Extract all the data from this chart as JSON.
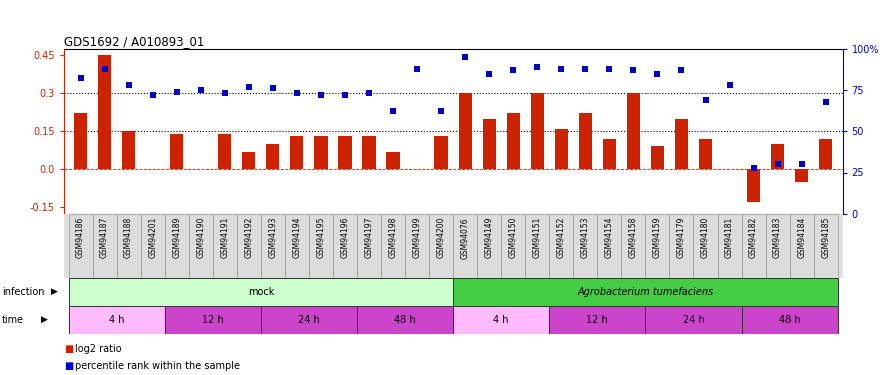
{
  "title": "GDS1692 / A010893_01",
  "gsm_labels": [
    "GSM94186",
    "GSM94187",
    "GSM94188",
    "GSM94201",
    "GSM94189",
    "GSM94190",
    "GSM94191",
    "GSM94192",
    "GSM94193",
    "GSM94194",
    "GSM94195",
    "GSM94196",
    "GSM94197",
    "GSM94198",
    "GSM94199",
    "GSM94200",
    "GSM94076",
    "GSM94149",
    "GSM94150",
    "GSM94151",
    "GSM94152",
    "GSM94153",
    "GSM94154",
    "GSM94158",
    "GSM94159",
    "GSM94179",
    "GSM94180",
    "GSM94181",
    "GSM94182",
    "GSM94183",
    "GSM94184",
    "GSM94185"
  ],
  "log2_ratio": [
    0.22,
    0.45,
    0.15,
    0.0,
    0.14,
    0.0,
    0.14,
    0.07,
    0.1,
    0.13,
    0.13,
    0.13,
    0.13,
    0.07,
    0.0,
    0.13,
    0.3,
    0.2,
    0.22,
    0.3,
    0.16,
    0.22,
    0.12,
    0.3,
    0.09,
    0.2,
    0.12,
    0.0,
    -0.13,
    0.1,
    -0.05,
    0.12
  ],
  "percentile_rank": [
    82,
    88,
    78,
    72,
    74,
    75,
    73,
    77,
    76,
    73,
    72,
    72,
    73,
    62,
    88,
    62,
    95,
    85,
    87,
    89,
    88,
    88,
    88,
    87,
    85,
    87,
    69,
    78,
    28,
    30,
    30,
    68
  ],
  "bar_color": "#cc2200",
  "dot_color": "#0000cc",
  "hline_color": "#000000",
  "hline_positions": [
    0.15,
    0.3
  ],
  "ylim_left": [
    -0.175,
    0.475
  ],
  "ylim_right": [
    0,
    100
  ],
  "yticks_left": [
    -0.15,
    0.0,
    0.15,
    0.3,
    0.45
  ],
  "ytick_right_labels": [
    "0",
    "25",
    "50",
    "75",
    "100%"
  ],
  "yticks_right": [
    0,
    25,
    50,
    75,
    100
  ],
  "infection_groups": [
    {
      "label": "mock",
      "start": 0,
      "end": 15,
      "color": "#ccffcc"
    },
    {
      "label": "Agrobacterium tumefaciens",
      "start": 16,
      "end": 31,
      "color": "#44cc44"
    }
  ],
  "time_groups": [
    {
      "label": "4 h",
      "start": 0,
      "end": 3,
      "color": "#ffbbff"
    },
    {
      "label": "12 h",
      "start": 4,
      "end": 7,
      "color": "#cc44cc"
    },
    {
      "label": "24 h",
      "start": 8,
      "end": 11,
      "color": "#cc44cc"
    },
    {
      "label": "48 h",
      "start": 12,
      "end": 15,
      "color": "#cc44cc"
    },
    {
      "label": "4 h",
      "start": 16,
      "end": 19,
      "color": "#ffbbff"
    },
    {
      "label": "12 h",
      "start": 20,
      "end": 23,
      "color": "#cc44cc"
    },
    {
      "label": "24 h",
      "start": 24,
      "end": 27,
      "color": "#cc44cc"
    },
    {
      "label": "48 h",
      "start": 28,
      "end": 31,
      "color": "#cc44cc"
    }
  ],
  "bg_color": "#ffffff"
}
